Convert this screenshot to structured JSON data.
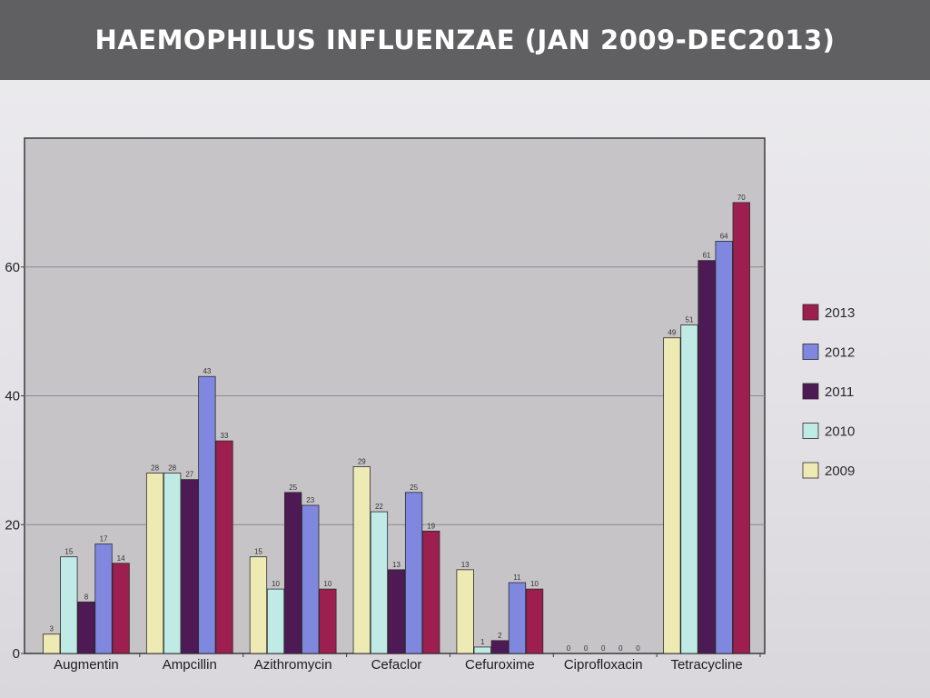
{
  "header": {
    "title": "HAEMOPHILUS INFLUENZAE (JAN 2009-DEC2013)"
  },
  "chart_data": {
    "type": "bar",
    "categories": [
      "Augmentin",
      "Ampcillin",
      "Azithromycin",
      "Cefaclor",
      "Cefuroxime",
      "Ciprofloxacin",
      "Tetracycline"
    ],
    "series": [
      {
        "name": "2009",
        "color": "#eeeab4",
        "values": [
          3,
          28,
          15,
          29,
          13,
          0,
          49
        ]
      },
      {
        "name": "2010",
        "color": "#bfeae6",
        "values": [
          15,
          28,
          10,
          22,
          1,
          0,
          51
        ]
      },
      {
        "name": "2011",
        "color": "#4e1a55",
        "values": [
          8,
          27,
          25,
          13,
          2,
          0,
          61
        ]
      },
      {
        "name": "2012",
        "color": "#7f87df",
        "values": [
          17,
          43,
          23,
          25,
          11,
          0,
          64
        ]
      },
      {
        "name": "2013",
        "color": "#9c1f4f",
        "values": [
          14,
          33,
          10,
          19,
          10,
          0,
          70
        ]
      }
    ],
    "legend_order": [
      "2013",
      "2012",
      "2011",
      "2010",
      "2009"
    ],
    "legend_position": "right",
    "yticks": [
      "0",
      "20",
      "40",
      "60"
    ],
    "ylim": [
      0,
      80
    ],
    "grid": true,
    "plot_background": "#c6c4c7"
  }
}
